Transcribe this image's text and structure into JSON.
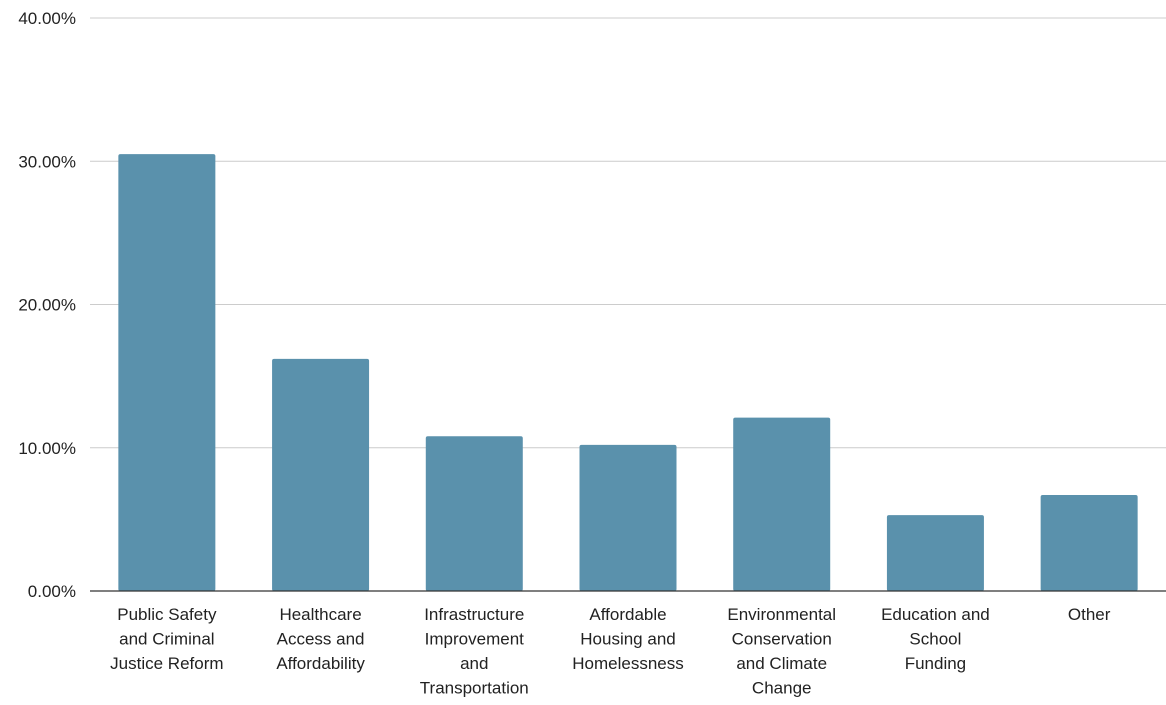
{
  "chart_data": {
    "type": "bar",
    "categories": [
      [
        "Public Safety",
        "and Criminal",
        "Justice Reform"
      ],
      [
        "Healthcare",
        "Access and",
        "Affordability"
      ],
      [
        "Infrastructure",
        "Improvement",
        "and",
        "Transportation"
      ],
      [
        "Affordable",
        "Housing and",
        "Homelessness"
      ],
      [
        "Environmental",
        "Conservation",
        "and Climate",
        "Change"
      ],
      [
        "Education and",
        "School",
        "Funding"
      ],
      [
        "Other"
      ]
    ],
    "values": [
      30.5,
      16.2,
      10.8,
      10.2,
      12.1,
      5.3,
      6.7
    ],
    "ylim": [
      0,
      40
    ],
    "yticks": [
      0,
      10,
      20,
      30,
      40
    ],
    "ytick_labels": [
      "0.00%",
      "10.00%",
      "20.00%",
      "30.00%",
      "40.00%"
    ],
    "grid": true,
    "legend": "none",
    "bar_color": "#5a91ac",
    "grid_color": "#cccccc",
    "axis_color": "#333333"
  }
}
